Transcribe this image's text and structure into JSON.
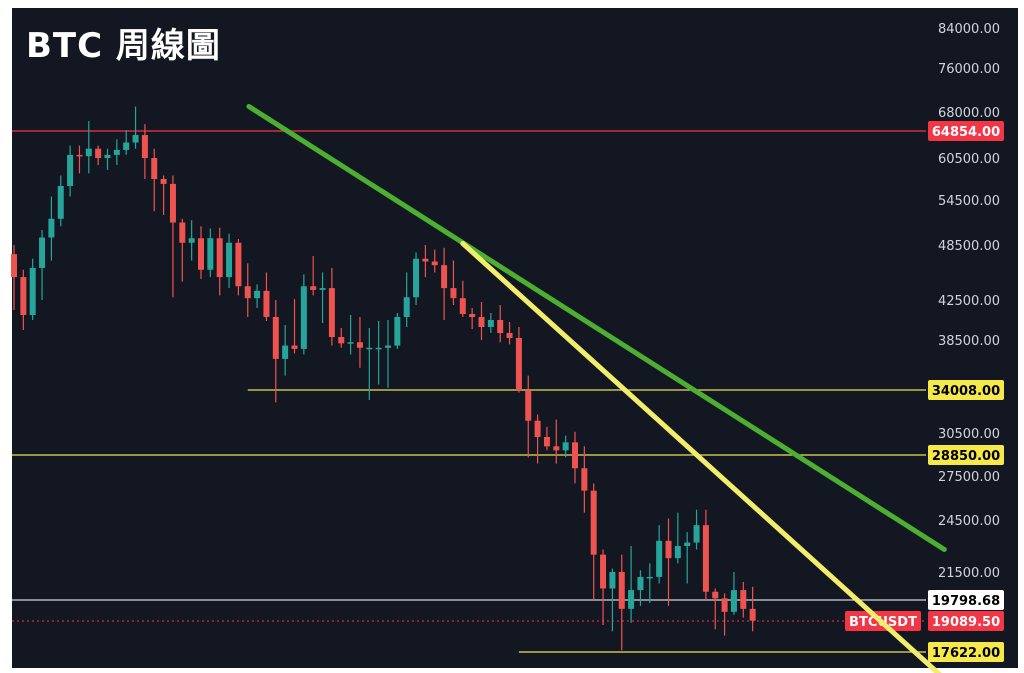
{
  "chart_data": {
    "type": "candlestick",
    "title": "BTC 周線圖",
    "symbol": "BTCUSDT",
    "axis_ticks": [
      "84000.00",
      "76000.00",
      "68000.00",
      "60500.00",
      "54500.00",
      "48500.00",
      "42500.00",
      "38500.00",
      "30500.00",
      "27500.00",
      "24500.00",
      "21500.00"
    ],
    "axis_ticks_values": [
      84000,
      76000,
      68000,
      60500,
      54500,
      48500,
      42500,
      38500,
      30500,
      27500,
      24500,
      21500
    ],
    "horizontal_levels": [
      {
        "label": "64854.00",
        "value": 64854,
        "color": "#f23645",
        "tag_bg": "#f23645",
        "tag_fg": "#ffffff"
      },
      {
        "label": "34008.00",
        "value": 34008,
        "color": "#e8e15a",
        "tag_bg": "#f5e84a",
        "tag_fg": "#000000"
      },
      {
        "label": "28850.00",
        "value": 28850,
        "color": "#e8e15a",
        "tag_bg": "#f5e84a",
        "tag_fg": "#000000"
      },
      {
        "label": "19798.68",
        "value": 19798.68,
        "color": "#d1d4dc",
        "tag_bg": "#ffffff",
        "tag_fg": "#000000"
      },
      {
        "label": "17622.00",
        "value": 17622,
        "color": "#e8e15a",
        "tag_bg": "#f5e84a",
        "tag_fg": "#000000"
      }
    ],
    "current_price": {
      "label": "19089.50",
      "value": 19089.5,
      "color": "#f23645"
    },
    "trendlines": [
      {
        "name": "green",
        "color": "#4caf32",
        "from": {
          "candle": 14,
          "price": 69000
        },
        "to": {
          "candle": 101,
          "price": 22800
        }
      },
      {
        "name": "yellow",
        "color": "#f2ee6b",
        "from": {
          "candle": 48,
          "price": 48700
        },
        "to": {
          "candle": 101,
          "price": 16200
        }
      }
    ],
    "colors": {
      "up": "#26a69a",
      "down": "#ef5350",
      "background": "#131722"
    },
    "candles": [
      [
        47500,
        45000,
        48500,
        41500
      ],
      [
        45000,
        41000,
        45800,
        39500
      ],
      [
        41000,
        46000,
        47000,
        40500
      ],
      [
        46000,
        49500,
        50500,
        42500
      ],
      [
        49500,
        52000,
        55000,
        46800
      ],
      [
        52000,
        56500,
        58000,
        51000
      ],
      [
        56500,
        61000,
        62500,
        55000
      ],
      [
        61000,
        60800,
        62500,
        58300
      ],
      [
        60800,
        62000,
        66500,
        58300
      ],
      [
        62000,
        60500,
        62500,
        59500
      ],
      [
        60500,
        61000,
        62000,
        58800
      ],
      [
        61000,
        61800,
        63500,
        59500
      ],
      [
        61800,
        63000,
        65000,
        61000
      ],
      [
        63000,
        64200,
        69000,
        62000
      ],
      [
        64200,
        60500,
        66000,
        57500
      ],
      [
        60500,
        57500,
        62000,
        53000
      ],
      [
        57500,
        56800,
        58000,
        52500
      ],
      [
        56800,
        51500,
        58000,
        42800
      ],
      [
        51500,
        48800,
        52000,
        44500
      ],
      [
        48800,
        49400,
        51800,
        46800
      ],
      [
        49400,
        45800,
        51000,
        44800
      ],
      [
        45800,
        49400,
        50700,
        45000
      ],
      [
        49400,
        45000,
        50800,
        43000
      ],
      [
        45000,
        48800,
        50000,
        43800
      ],
      [
        48800,
        44000,
        49300,
        43000
      ],
      [
        44000,
        42700,
        46500,
        40800
      ],
      [
        42700,
        43500,
        44200,
        41700
      ],
      [
        43500,
        40800,
        45500,
        40400
      ],
      [
        40800,
        36800,
        42500,
        33000
      ],
      [
        36800,
        38000,
        40000,
        35300
      ],
      [
        38000,
        37700,
        42600,
        37300
      ],
      [
        37700,
        44000,
        45300,
        37200
      ],
      [
        44000,
        43600,
        47300,
        43000
      ],
      [
        43600,
        43800,
        45500,
        40200
      ],
      [
        43800,
        38800,
        46000,
        38000
      ],
      [
        38800,
        38200,
        39700,
        37800
      ],
      [
        38200,
        38300,
        41000,
        37200
      ],
      [
        38300,
        37800,
        40800,
        36000
      ],
      [
        37800,
        37800,
        39700,
        33200
      ],
      [
        37800,
        37800,
        40400,
        34500
      ],
      [
        37800,
        38000,
        40500,
        34200
      ],
      [
        38000,
        40800,
        41200,
        37700
      ],
      [
        40800,
        42800,
        45500,
        39800
      ],
      [
        42800,
        47000,
        47700,
        42000
      ],
      [
        47000,
        46700,
        48500,
        45000
      ],
      [
        46700,
        46300,
        48000,
        45500
      ],
      [
        46300,
        43800,
        48200,
        40500
      ],
      [
        43800,
        42700,
        46800,
        42000
      ],
      [
        42700,
        41100,
        44600,
        40800
      ],
      [
        41100,
        40800,
        41700,
        39600
      ],
      [
        40800,
        39800,
        42300,
        38500
      ],
      [
        39800,
        40500,
        41200,
        39200
      ],
      [
        40500,
        39200,
        42000,
        38300
      ],
      [
        39200,
        38700,
        40300,
        38100
      ],
      [
        38700,
        34000,
        39800,
        33800
      ],
      [
        34000,
        31500,
        35300,
        28700
      ],
      [
        31500,
        30200,
        32000,
        28300
      ],
      [
        30200,
        29500,
        31000,
        29200
      ],
      [
        29500,
        29200,
        31600,
        28300
      ],
      [
        29200,
        29800,
        30300,
        28700
      ],
      [
        29800,
        28000,
        30600,
        27000
      ],
      [
        28000,
        26500,
        29500,
        25000
      ],
      [
        26500,
        22500,
        27000,
        19800
      ],
      [
        22500,
        20500,
        22800,
        18900
      ],
      [
        20500,
        21500,
        21700,
        18600
      ],
      [
        21500,
        19500,
        22500,
        17700
      ],
      [
        19500,
        20400,
        23000,
        19000
      ],
      [
        20400,
        21200,
        21600,
        19600
      ],
      [
        21200,
        21200,
        22000,
        19700
      ],
      [
        21200,
        23300,
        24200,
        20800
      ],
      [
        23300,
        22300,
        24600,
        19600
      ],
      [
        22300,
        23000,
        25000,
        22000
      ],
      [
        23000,
        23200,
        23800,
        20800
      ],
      [
        23200,
        24200,
        25200,
        22800
      ],
      [
        24200,
        20300,
        25200,
        19800
      ],
      [
        20300,
        19900,
        20500,
        18700
      ],
      [
        19900,
        19400,
        20200,
        18400
      ],
      [
        19400,
        20400,
        21500,
        19300
      ],
      [
        20400,
        19500,
        20900,
        19200
      ],
      [
        19500,
        19100,
        20600,
        18600
      ]
    ]
  }
}
